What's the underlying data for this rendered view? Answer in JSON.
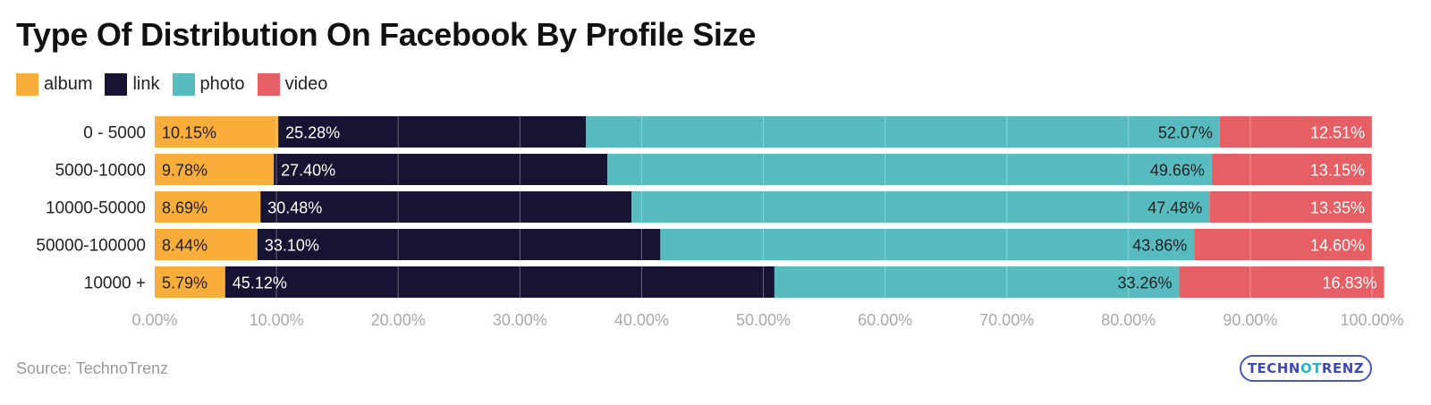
{
  "title": "Type Of Distribution On Facebook By Profile Size",
  "source": "Source: TechnoTrenz",
  "logo_text": "TECHNOTRENZ",
  "legend": [
    {
      "label": "album",
      "color": "#F9AE3B"
    },
    {
      "label": "link",
      "color": "#161432"
    },
    {
      "label": "photo",
      "color": "#58BBBF"
    },
    {
      "label": "video",
      "color": "#E65F64"
    }
  ],
  "chart_data": {
    "type": "bar",
    "orientation": "horizontal",
    "stacked": true,
    "title": "Type Of Distribution On Facebook By Profile Size",
    "categories": [
      "0 - 5000",
      "5000-10000",
      "10000-50000",
      "50000-100000",
      "10000 +"
    ],
    "series": [
      {
        "name": "album",
        "color": "#F9AE3B",
        "values": [
          10.15,
          9.78,
          8.69,
          8.44,
          5.79
        ],
        "labels": [
          "10.15%",
          "9.78%",
          "8.69%",
          "8.44%",
          "5.79%"
        ]
      },
      {
        "name": "link",
        "color": "#161432",
        "values": [
          25.28,
          27.4,
          30.48,
          33.1,
          45.12
        ],
        "labels": [
          "25.28%",
          "27.40%",
          "30.48%",
          "33.10%",
          "45.12%"
        ]
      },
      {
        "name": "photo",
        "color": "#58BBBF",
        "values": [
          52.07,
          49.66,
          47.48,
          43.86,
          33.26
        ],
        "labels": [
          "52.07%",
          "49.66%",
          "47.48%",
          "43.86%",
          "33.26%"
        ]
      },
      {
        "name": "video",
        "color": "#E65F64",
        "values": [
          12.51,
          13.15,
          13.35,
          14.6,
          16.83
        ],
        "labels": [
          "12.51%",
          "13.15%",
          "13.35%",
          "14.60%",
          "16.83%"
        ]
      }
    ],
    "xlim": [
      0,
      100
    ],
    "xticks": [
      0,
      10,
      20,
      30,
      40,
      50,
      60,
      70,
      80,
      90,
      100
    ],
    "xtick_labels": [
      "0.00%",
      "10.00%",
      "20.00%",
      "30.00%",
      "40.00%",
      "50.00%",
      "60.00%",
      "70.00%",
      "80.00%",
      "90.00%",
      "100.00%"
    ],
    "grid": true,
    "legend_position": "top-left"
  }
}
